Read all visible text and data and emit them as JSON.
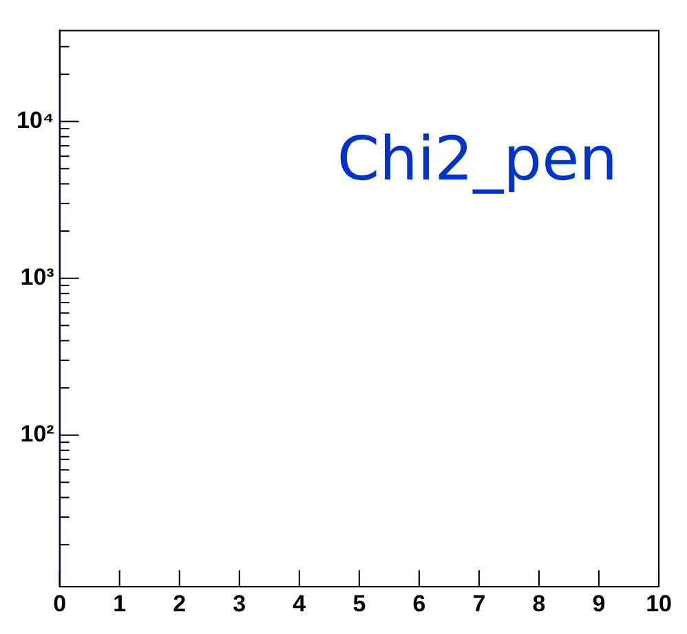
{
  "chart_data": {
    "type": "histogram",
    "title": "Chi2_pen",
    "bins": [
      0,
      0.02
    ],
    "values": [
      20000
    ],
    "color": "#000099",
    "log": "y",
    "grid": false,
    "xlim": [
      0,
      10
    ],
    "xticks": [
      0,
      1,
      2,
      3,
      4,
      5,
      6,
      7,
      8,
      9,
      10
    ],
    "ylim": [
      10.8,
      38000
    ],
    "yticks": [
      {
        "value": 20,
        "label": null
      },
      {
        "value": 30,
        "label": null
      },
      {
        "value": 40,
        "label": null
      },
      {
        "value": 50,
        "label": null
      },
      {
        "value": 60,
        "label": null
      },
      {
        "value": 70,
        "label": null
      },
      {
        "value": 80,
        "label": null
      },
      {
        "value": 90,
        "label": null
      },
      {
        "value": 100,
        "label": "10²"
      },
      {
        "value": 200,
        "label": null
      },
      {
        "value": 300,
        "label": null
      },
      {
        "value": 400,
        "label": null
      },
      {
        "value": 500,
        "label": null
      },
      {
        "value": 600,
        "label": null
      },
      {
        "value": 700,
        "label": null
      },
      {
        "value": 800,
        "label": null
      },
      {
        "value": 900,
        "label": null
      },
      {
        "value": 1000,
        "label": "10³"
      },
      {
        "value": 2000,
        "label": null
      },
      {
        "value": 3000,
        "label": null
      },
      {
        "value": 4000,
        "label": null
      },
      {
        "value": 5000,
        "label": null
      },
      {
        "value": 6000,
        "label": null
      },
      {
        "value": 7000,
        "label": null
      },
      {
        "value": 8000,
        "label": null
      },
      {
        "value": 9000,
        "label": null
      },
      {
        "value": 10000,
        "label": "10⁴"
      },
      {
        "value": 20000,
        "label": null
      },
      {
        "value": 30000,
        "label": null
      }
    ]
  }
}
